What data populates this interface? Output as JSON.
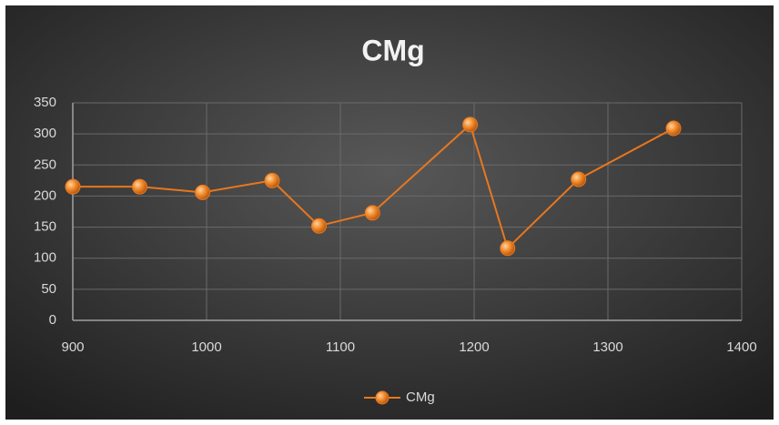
{
  "chart_data": {
    "type": "line",
    "title": "CMg",
    "x": [
      900,
      950,
      997,
      1049,
      1084,
      1124,
      1197,
      1225,
      1278,
      1349
    ],
    "series": [
      {
        "name": "CMg",
        "color": "#e8771e",
        "values": [
          215,
          215,
          206,
          225,
          152,
          173,
          315,
          116,
          227,
          309
        ]
      }
    ],
    "xlim": [
      900,
      1400
    ],
    "xticks": [
      900,
      1000,
      1100,
      1200,
      1300,
      1400
    ],
    "ylim": [
      0,
      350
    ],
    "yticks": [
      0,
      50,
      100,
      150,
      200,
      250,
      300,
      350
    ],
    "grid": true,
    "legend": "bottom"
  }
}
